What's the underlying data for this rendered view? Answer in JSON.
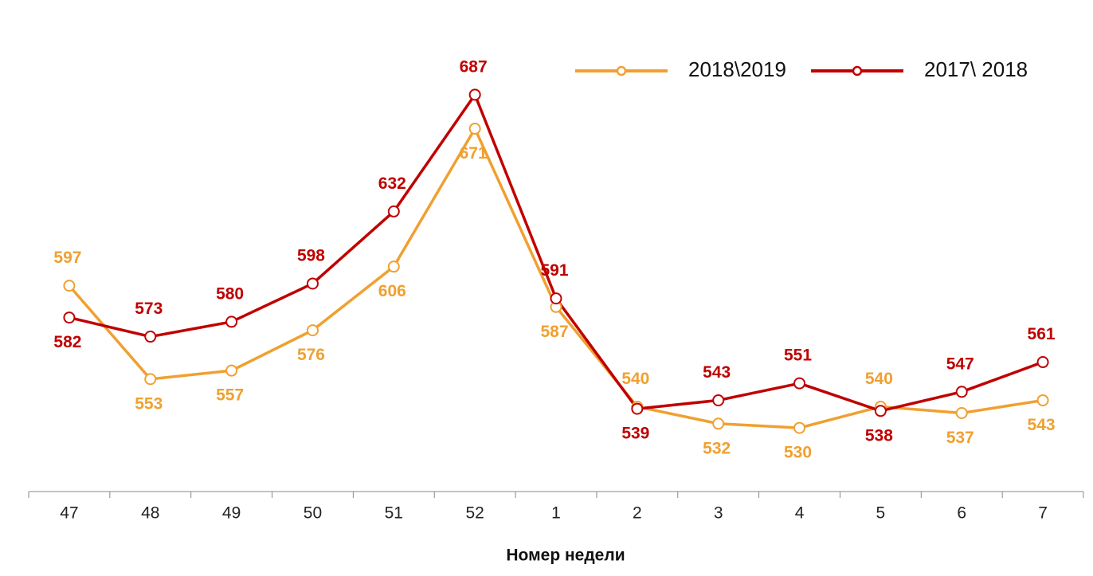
{
  "chart_data": {
    "type": "line",
    "x_label": "Номер недели",
    "categories": [
      "47",
      "48",
      "49",
      "50",
      "51",
      "52",
      "1",
      "2",
      "3",
      "4",
      "5",
      "6",
      "7"
    ],
    "series": [
      {
        "name": "2018\\2019",
        "color": "#f0a030",
        "values": [
          597,
          553,
          557,
          576,
          606,
          671,
          587,
          540,
          532,
          530,
          540,
          537,
          543
        ]
      },
      {
        "name": "2017\\ 2018",
        "color": "#c00000",
        "values": [
          582,
          573,
          580,
          598,
          632,
          687,
          591,
          539,
          543,
          551,
          538,
          547,
          561
        ]
      }
    ],
    "ylim": [
      500,
      720
    ],
    "legend": "upper right",
    "grid": false
  }
}
